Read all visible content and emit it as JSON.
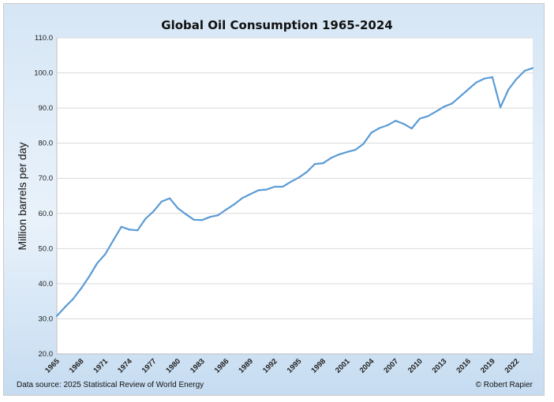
{
  "chart_data": {
    "type": "line",
    "title": "Global Oil Consumption 1965-2024",
    "xlabel": "",
    "ylabel": "Million barrels per day",
    "ylim": [
      20,
      110
    ],
    "yticks": [
      "20.0",
      "30.0",
      "40.0",
      "50.0",
      "60.0",
      "70.0",
      "80.0",
      "90.0",
      "100.0",
      "110.0"
    ],
    "xticks": [
      "1965",
      "1968",
      "1971",
      "1974",
      "1977",
      "1980",
      "1983",
      "1986",
      "1989",
      "1992",
      "1995",
      "1998",
      "2001",
      "2004",
      "2007",
      "2010",
      "2013",
      "2016",
      "2019",
      "2022"
    ],
    "grid": true,
    "series": [
      {
        "name": "Global oil consumption",
        "color": "#5b9bd5",
        "x": [
          1965,
          1966,
          1967,
          1968,
          1969,
          1970,
          1971,
          1972,
          1973,
          1974,
          1975,
          1976,
          1977,
          1978,
          1979,
          1980,
          1981,
          1982,
          1983,
          1984,
          1985,
          1986,
          1987,
          1988,
          1989,
          1990,
          1991,
          1992,
          1993,
          1994,
          1995,
          1996,
          1997,
          1998,
          1999,
          2000,
          2001,
          2002,
          2003,
          2004,
          2005,
          2006,
          2007,
          2008,
          2009,
          2010,
          2011,
          2012,
          2013,
          2014,
          2015,
          2016,
          2017,
          2018,
          2019,
          2020,
          2021,
          2022,
          2023,
          2024
        ],
        "values": [
          30.8,
          33.3,
          35.6,
          38.6,
          42.0,
          45.8,
          48.4,
          52.3,
          56.2,
          55.4,
          55.2,
          58.5,
          60.6,
          63.4,
          64.3,
          61.5,
          59.8,
          58.2,
          58.1,
          59.0,
          59.5,
          61.1,
          62.6,
          64.4,
          65.5,
          66.6,
          66.8,
          67.6,
          67.6,
          69.0,
          70.2,
          71.8,
          74.1,
          74.3,
          75.8,
          76.8,
          77.5,
          78.1,
          79.8,
          83.0,
          84.3,
          85.1,
          86.4,
          85.5,
          84.2,
          87.0,
          87.7,
          89.0,
          90.4,
          91.3,
          93.3,
          95.3,
          97.3,
          98.4,
          98.8,
          90.2,
          95.3,
          98.3,
          100.6,
          101.4
        ]
      }
    ]
  },
  "footer": {
    "source": "Data source: 2025 Statistical Review of World Energy",
    "copyright": "© Robert Rapier"
  }
}
